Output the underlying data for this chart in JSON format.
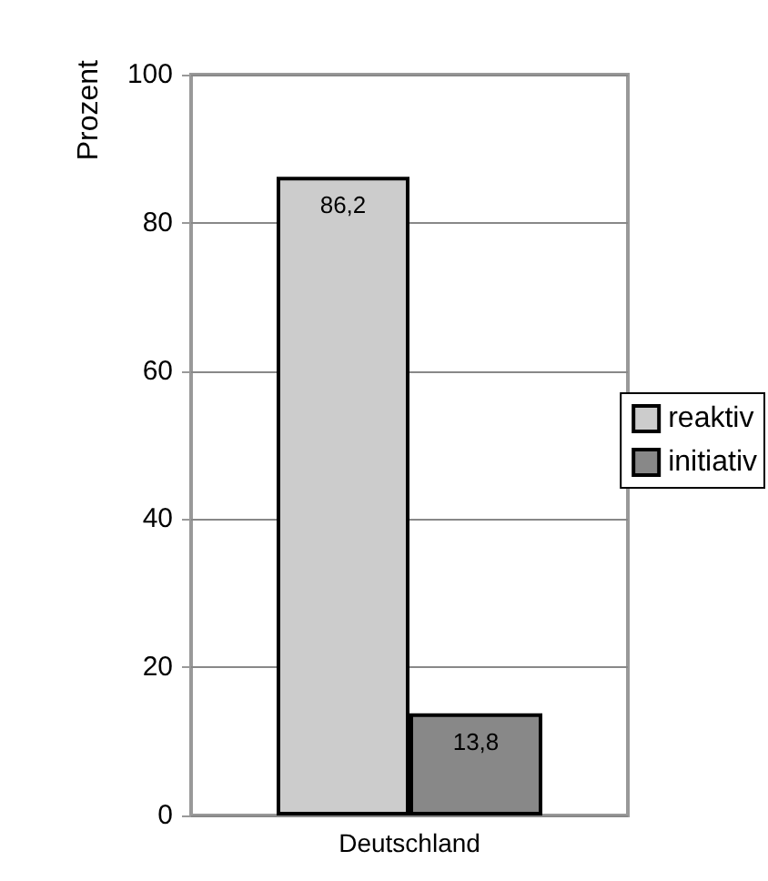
{
  "chart_data": {
    "type": "bar",
    "ylabel": "Prozent",
    "categories": [
      "Deutschland"
    ],
    "series": [
      {
        "name": "reaktiv",
        "color": "#cccccc",
        "values": [
          86.2
        ],
        "value_labels": [
          "86,2"
        ]
      },
      {
        "name": "initiativ",
        "color": "#888888",
        "values": [
          13.8
        ],
        "value_labels": [
          "13,8"
        ]
      }
    ],
    "ylim": [
      0,
      100
    ],
    "yticks": [
      0,
      20,
      40,
      60,
      80,
      100
    ],
    "grid": "y",
    "legend": "right"
  }
}
